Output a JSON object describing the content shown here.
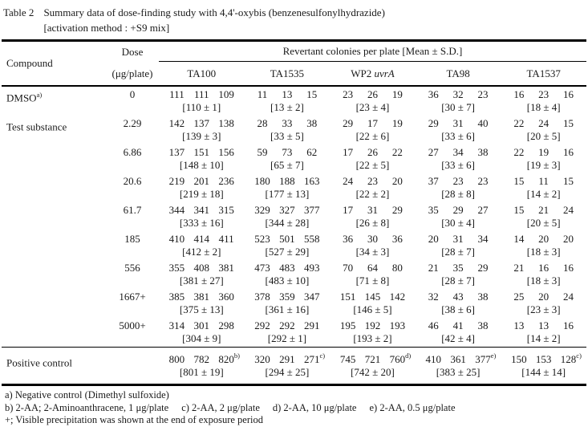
{
  "title": {
    "label": "Table 2",
    "line1": "Summary data of dose-finding study with 4,4'-oxybis (benzenesulfonylhydrazide)",
    "line2": "[activation method : +S9 mix]"
  },
  "header": {
    "compound": "Compound",
    "dose_line1": "Dose",
    "dose_line2": "(μg/plate)",
    "span_header": "Revertant colonies per plate [Mean ± S.D.]",
    "strains": [
      {
        "text": "TA100",
        "italic": "",
        "key": "ta100"
      },
      {
        "text": "TA1535",
        "italic": "",
        "key": "ta1535"
      },
      {
        "text": "WP2 ",
        "italic": "uvrA",
        "key": "wp2-uvra"
      },
      {
        "text": "TA98",
        "italic": "",
        "key": "ta98"
      },
      {
        "text": "TA1537",
        "italic": "",
        "key": "ta1537"
      }
    ]
  },
  "rows": [
    {
      "compound": "DMSO",
      "compound_sup": "a)",
      "dose": "0",
      "cells": [
        {
          "v": [
            "111",
            "111",
            "109"
          ],
          "sup": "",
          "mean": "[110 ± 1]"
        },
        {
          "v": [
            "11",
            "13",
            "15"
          ],
          "sup": "",
          "mean": "[13 ± 2]"
        },
        {
          "v": [
            "23",
            "26",
            "19"
          ],
          "sup": "",
          "mean": "[23 ± 4]"
        },
        {
          "v": [
            "36",
            "32",
            "23"
          ],
          "sup": "",
          "mean": "[30 ± 7]"
        },
        {
          "v": [
            "16",
            "23",
            "16"
          ],
          "sup": "",
          "mean": "[18 ± 4]"
        }
      ]
    },
    {
      "compound": "Test substance",
      "compound_sup": "",
      "dose": "2.29",
      "cells": [
        {
          "v": [
            "142",
            "137",
            "138"
          ],
          "sup": "",
          "mean": "[139 ± 3]"
        },
        {
          "v": [
            "28",
            "33",
            "38"
          ],
          "sup": "",
          "mean": "[33 ± 5]"
        },
        {
          "v": [
            "29",
            "17",
            "19"
          ],
          "sup": "",
          "mean": "[22 ± 6]"
        },
        {
          "v": [
            "29",
            "31",
            "40"
          ],
          "sup": "",
          "mean": "[33 ± 6]"
        },
        {
          "v": [
            "22",
            "24",
            "15"
          ],
          "sup": "",
          "mean": "[20 ± 5]"
        }
      ]
    },
    {
      "compound": "",
      "compound_sup": "",
      "dose": "6.86",
      "cells": [
        {
          "v": [
            "137",
            "151",
            "156"
          ],
          "sup": "",
          "mean": "[148 ± 10]"
        },
        {
          "v": [
            "59",
            "73",
            "62"
          ],
          "sup": "",
          "mean": "[65 ± 7]"
        },
        {
          "v": [
            "17",
            "26",
            "22"
          ],
          "sup": "",
          "mean": "[22 ± 5]"
        },
        {
          "v": [
            "27",
            "34",
            "38"
          ],
          "sup": "",
          "mean": "[33 ± 6]"
        },
        {
          "v": [
            "22",
            "19",
            "16"
          ],
          "sup": "",
          "mean": "[19 ± 3]"
        }
      ]
    },
    {
      "compound": "",
      "compound_sup": "",
      "dose": "20.6",
      "cells": [
        {
          "v": [
            "219",
            "201",
            "236"
          ],
          "sup": "",
          "mean": "[219 ± 18]"
        },
        {
          "v": [
            "180",
            "188",
            "163"
          ],
          "sup": "",
          "mean": "[177 ± 13]"
        },
        {
          "v": [
            "24",
            "23",
            "20"
          ],
          "sup": "",
          "mean": "[22 ± 2]"
        },
        {
          "v": [
            "37",
            "23",
            "23"
          ],
          "sup": "",
          "mean": "[28 ± 8]"
        },
        {
          "v": [
            "15",
            "11",
            "15"
          ],
          "sup": "",
          "mean": "[14 ± 2]"
        }
      ]
    },
    {
      "compound": "",
      "compound_sup": "",
      "dose": "61.7",
      "cells": [
        {
          "v": [
            "344",
            "341",
            "315"
          ],
          "sup": "",
          "mean": "[333 ± 16]"
        },
        {
          "v": [
            "329",
            "327",
            "377"
          ],
          "sup": "",
          "mean": "[344 ± 28]"
        },
        {
          "v": [
            "17",
            "31",
            "29"
          ],
          "sup": "",
          "mean": "[26 ± 8]"
        },
        {
          "v": [
            "35",
            "29",
            "27"
          ],
          "sup": "",
          "mean": "[30 ± 4]"
        },
        {
          "v": [
            "15",
            "21",
            "24"
          ],
          "sup": "",
          "mean": "[20 ± 5]"
        }
      ]
    },
    {
      "compound": "",
      "compound_sup": "",
      "dose": "185",
      "cells": [
        {
          "v": [
            "410",
            "414",
            "411"
          ],
          "sup": "",
          "mean": "[412 ± 2]"
        },
        {
          "v": [
            "523",
            "501",
            "558"
          ],
          "sup": "",
          "mean": "[527 ± 29]"
        },
        {
          "v": [
            "36",
            "30",
            "36"
          ],
          "sup": "",
          "mean": "[34 ± 3]"
        },
        {
          "v": [
            "20",
            "31",
            "34"
          ],
          "sup": "",
          "mean": "[28 ± 7]"
        },
        {
          "v": [
            "14",
            "20",
            "20"
          ],
          "sup": "",
          "mean": "[18 ± 3]"
        }
      ]
    },
    {
      "compound": "",
      "compound_sup": "",
      "dose": "556",
      "cells": [
        {
          "v": [
            "355",
            "408",
            "381"
          ],
          "sup": "",
          "mean": "[381 ± 27]"
        },
        {
          "v": [
            "473",
            "483",
            "493"
          ],
          "sup": "",
          "mean": "[483 ± 10]"
        },
        {
          "v": [
            "70",
            "64",
            "80"
          ],
          "sup": "",
          "mean": "[71 ± 8]"
        },
        {
          "v": [
            "21",
            "35",
            "29"
          ],
          "sup": "",
          "mean": "[28 ± 7]"
        },
        {
          "v": [
            "21",
            "16",
            "16"
          ],
          "sup": "",
          "mean": "[18 ± 3]"
        }
      ]
    },
    {
      "compound": "",
      "compound_sup": "",
      "dose": "1667+",
      "cells": [
        {
          "v": [
            "385",
            "381",
            "360"
          ],
          "sup": "",
          "mean": "[375 ± 13]"
        },
        {
          "v": [
            "378",
            "359",
            "347"
          ],
          "sup": "",
          "mean": "[361 ± 16]"
        },
        {
          "v": [
            "151",
            "145",
            "142"
          ],
          "sup": "",
          "mean": "[146 ± 5]"
        },
        {
          "v": [
            "32",
            "43",
            "38"
          ],
          "sup": "",
          "mean": "[38 ± 6]"
        },
        {
          "v": [
            "25",
            "20",
            "24"
          ],
          "sup": "",
          "mean": "[23 ± 3]"
        }
      ]
    },
    {
      "compound": "",
      "compound_sup": "",
      "dose": "5000+",
      "cells": [
        {
          "v": [
            "314",
            "301",
            "298"
          ],
          "sup": "",
          "mean": "[304 ± 9]"
        },
        {
          "v": [
            "292",
            "292",
            "291"
          ],
          "sup": "",
          "mean": "[292 ± 1]"
        },
        {
          "v": [
            "195",
            "192",
            "193"
          ],
          "sup": "",
          "mean": "[193 ± 2]"
        },
        {
          "v": [
            "46",
            "41",
            "38"
          ],
          "sup": "",
          "mean": "[42 ± 4]"
        },
        {
          "v": [
            "13",
            "13",
            "16"
          ],
          "sup": "",
          "mean": "[14 ± 2]"
        }
      ]
    }
  ],
  "positive_control": {
    "compound": "Positive control",
    "compound_sup": "",
    "dose": "",
    "cells": [
      {
        "v": [
          "800",
          "782",
          "820"
        ],
        "sup": "b)",
        "mean": "[801 ± 19]"
      },
      {
        "v": [
          "320",
          "291",
          "271"
        ],
        "sup": "c)",
        "mean": "[294 ± 25]"
      },
      {
        "v": [
          "745",
          "721",
          "760"
        ],
        "sup": "d)",
        "mean": "[742 ± 20]"
      },
      {
        "v": [
          "410",
          "361",
          "377"
        ],
        "sup": "e)",
        "mean": "[383 ± 25]"
      },
      {
        "v": [
          "150",
          "153",
          "128"
        ],
        "sup": "c)",
        "mean": "[144 ± 14]"
      }
    ]
  },
  "footnotes": {
    "line1": "a) Negative control (Dimethyl sulfoxide)",
    "line2_segments": [
      "b) 2-AA; 2-Aminoanthracene, 1 μg/plate",
      "c) 2-AA, 2 μg/plate",
      "d) 2-AA, 10 μg/plate",
      "e) 2-AA, 0.5 μg/plate"
    ],
    "line3": "+; Visible precipitation was shown at the end of exposure period"
  }
}
